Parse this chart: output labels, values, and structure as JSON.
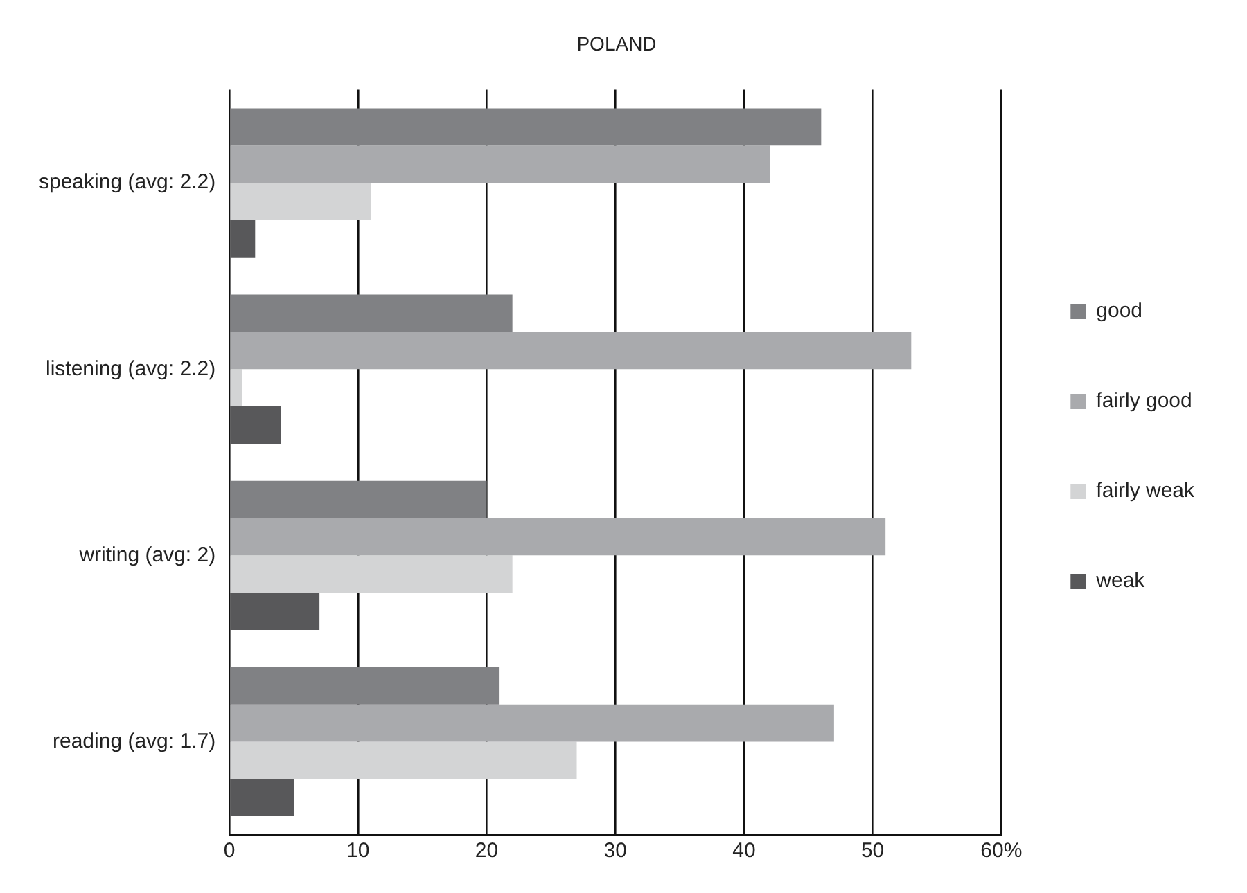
{
  "chart_data": {
    "type": "bar",
    "orientation": "horizontal",
    "title": "POLAND",
    "categories": [
      "speaking (avg: 2.2)",
      "listening (avg: 2.2)",
      "writing (avg: 2)",
      "reading (avg: 1.7)"
    ],
    "series": [
      {
        "name": "good",
        "color": "#808184",
        "values": [
          46,
          22,
          20,
          21
        ]
      },
      {
        "name": "fairly good",
        "color": "#a9aaad",
        "values": [
          42,
          53,
          51,
          47
        ]
      },
      {
        "name": "fairly weak",
        "color": "#d3d4d5",
        "values": [
          11,
          1,
          22,
          27
        ]
      },
      {
        "name": "weak",
        "color": "#58585a",
        "values": [
          2,
          4,
          7,
          5
        ]
      }
    ],
    "xlim": [
      0,
      60
    ],
    "xticks": [
      0,
      10,
      20,
      30,
      40,
      50,
      {
        "value": 60,
        "label": "60%"
      }
    ],
    "grid": "x",
    "legend": "right"
  }
}
